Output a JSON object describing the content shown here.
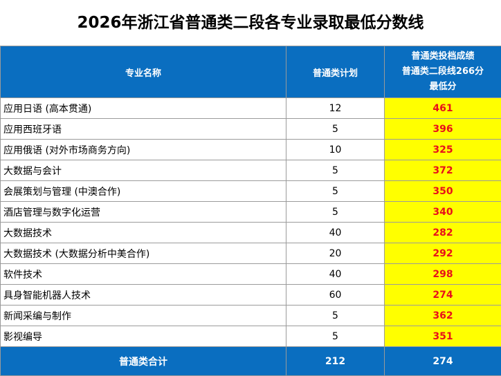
{
  "title": "2026年浙江省普通类二段各专业录取最低分数线",
  "header": {
    "col_name": "专业名称",
    "col_plan": "普通类计划",
    "col_score_line1": "普通类投档成绩",
    "col_score_line2": "普通类二段线266分",
    "col_score_line3": "最低分"
  },
  "rows": [
    {
      "name": "应用日语 (高本贯通)",
      "plan": "12",
      "score": "461"
    },
    {
      "name": "应用西班牙语",
      "plan": "5",
      "score": "396"
    },
    {
      "name": "应用俄语 (对外市场商务方向)",
      "plan": "10",
      "score": "325"
    },
    {
      "name": "大数据与会计",
      "plan": "5",
      "score": "372"
    },
    {
      "name": "会展策划与管理 (中澳合作)",
      "plan": "5",
      "score": "350"
    },
    {
      "name": "酒店管理与数字化运营",
      "plan": "5",
      "score": "340"
    },
    {
      "name": "大数据技术",
      "plan": "40",
      "score": "282"
    },
    {
      "name": "大数据技术 (大数据分析中美合作)",
      "plan": "20",
      "score": "292"
    },
    {
      "name": "软件技术",
      "plan": "40",
      "score": "298"
    },
    {
      "name": "具身智能机器人技术",
      "plan": "60",
      "score": "274"
    },
    {
      "name": "新闻采编与制作",
      "plan": "5",
      "score": "362"
    },
    {
      "name": "影视编导",
      "plan": "5",
      "score": "351"
    }
  ],
  "footer": {
    "label": "普通类合计",
    "plan_total": "212",
    "min_score": "274"
  },
  "colors": {
    "header_bg": "#0a6ec0",
    "score_bg": "#ffff00",
    "score_text": "#e8101a"
  }
}
